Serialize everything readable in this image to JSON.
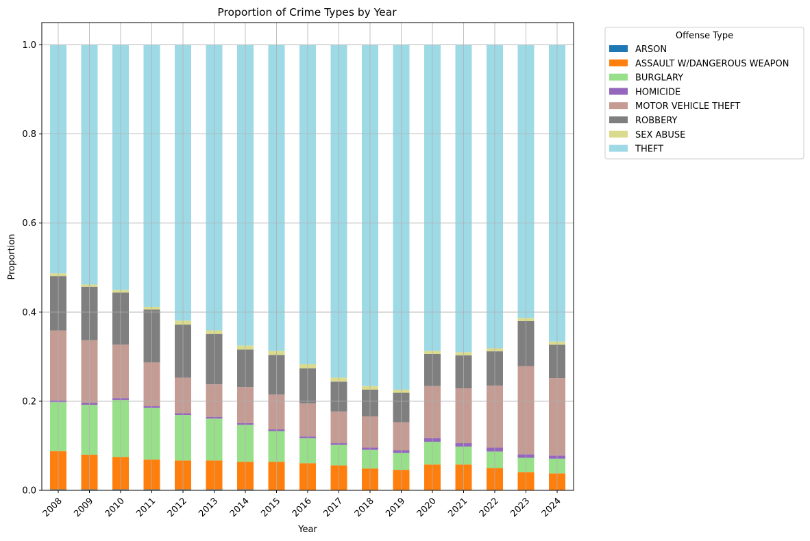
{
  "chart_data": {
    "type": "bar",
    "stacked": true,
    "title": "Proportion of Crime Types by Year",
    "xlabel": "Year",
    "ylabel": "Proportion",
    "ylim": [
      0,
      1.05
    ],
    "yticks": [
      "0.0",
      "0.2",
      "0.4",
      "0.6",
      "0.8",
      "1.0"
    ],
    "grid": true,
    "legend_title": "Offense Type",
    "legend_position": "outside-top-right",
    "categories": [
      "2008",
      "2009",
      "2010",
      "2011",
      "2012",
      "2013",
      "2014",
      "2015",
      "2016",
      "2017",
      "2018",
      "2019",
      "2020",
      "2021",
      "2022",
      "2023",
      "2024"
    ],
    "series": [
      {
        "name": "ARSON",
        "color": "#1f77b4",
        "values": [
          0.002,
          0.002,
          0.002,
          0.002,
          0.002,
          0.002,
          0.002,
          0.001,
          0.001,
          0.001,
          0.001,
          0.001,
          0.001,
          0.001,
          0.001,
          0.001,
          0.001
        ]
      },
      {
        "name": "ASSAULT W/DANGEROUS WEAPON",
        "color": "#ff7f0e",
        "values": [
          0.086,
          0.078,
          0.073,
          0.067,
          0.065,
          0.065,
          0.062,
          0.063,
          0.06,
          0.055,
          0.048,
          0.045,
          0.057,
          0.057,
          0.049,
          0.04,
          0.037
        ]
      },
      {
        "name": "BURGLARY",
        "color": "#98df8a",
        "values": [
          0.11,
          0.112,
          0.128,
          0.116,
          0.102,
          0.094,
          0.083,
          0.069,
          0.056,
          0.046,
          0.042,
          0.038,
          0.051,
          0.04,
          0.037,
          0.032,
          0.033
        ]
      },
      {
        "name": "HOMICIDE",
        "color": "#9467bd",
        "values": [
          0.004,
          0.004,
          0.004,
          0.004,
          0.004,
          0.004,
          0.004,
          0.004,
          0.004,
          0.004,
          0.005,
          0.006,
          0.008,
          0.008,
          0.009,
          0.008,
          0.007
        ]
      },
      {
        "name": "MOTOR VEHICLE THEFT",
        "color": "#c49c94",
        "values": [
          0.157,
          0.141,
          0.12,
          0.098,
          0.08,
          0.073,
          0.081,
          0.078,
          0.074,
          0.071,
          0.07,
          0.063,
          0.117,
          0.123,
          0.139,
          0.198,
          0.174
        ]
      },
      {
        "name": "ROBBERY",
        "color": "#7f7f7f",
        "values": [
          0.122,
          0.12,
          0.117,
          0.119,
          0.119,
          0.113,
          0.084,
          0.089,
          0.079,
          0.067,
          0.06,
          0.066,
          0.072,
          0.074,
          0.077,
          0.101,
          0.075
        ]
      },
      {
        "name": "SEX ABUSE",
        "color": "#dbdb8d",
        "values": [
          0.006,
          0.005,
          0.006,
          0.006,
          0.009,
          0.008,
          0.009,
          0.009,
          0.009,
          0.009,
          0.008,
          0.007,
          0.007,
          0.007,
          0.007,
          0.007,
          0.007
        ]
      },
      {
        "name": "THEFT",
        "color": "#9edae5",
        "values": [
          0.513,
          0.538,
          0.55,
          0.588,
          0.619,
          0.641,
          0.675,
          0.687,
          0.717,
          0.747,
          0.766,
          0.774,
          0.687,
          0.69,
          0.681,
          0.613,
          0.666
        ]
      }
    ]
  }
}
